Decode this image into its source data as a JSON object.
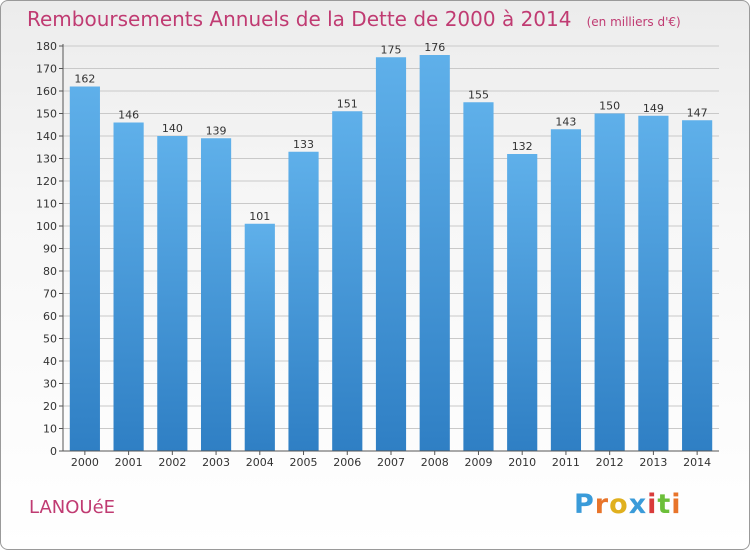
{
  "title": "Remboursements Annuels de la Dette de 2000 à 2014",
  "unit": "(en milliers d'€)",
  "commune": "LANOUéE",
  "logo": {
    "text": "Proxiti",
    "letter_colors": [
      "#3a9bd9",
      "#e8742a",
      "#e0b01e",
      "#3a9bd9",
      "#d93b3b",
      "#6cbf3a",
      "#e8742a"
    ]
  },
  "colors": {
    "bar": "#3d8fd7",
    "bar_light": "#5fb0ea",
    "title": "#c03b72",
    "grid": "#c9c9c9"
  },
  "chart_data": {
    "type": "bar",
    "title": "Remboursements Annuels de la Dette de 2000 à 2014",
    "xlabel": "",
    "ylabel": "",
    "categories": [
      "2000",
      "2001",
      "2002",
      "2003",
      "2004",
      "2005",
      "2006",
      "2007",
      "2008",
      "2009",
      "2010",
      "2011",
      "2012",
      "2013",
      "2014"
    ],
    "values": [
      162,
      146,
      140,
      139,
      101,
      133,
      151,
      175,
      176,
      155,
      132,
      143,
      150,
      149,
      147
    ],
    "ylim": [
      0,
      180
    ],
    "yticks": [
      0,
      10,
      20,
      30,
      40,
      50,
      60,
      70,
      80,
      90,
      100,
      110,
      120,
      130,
      140,
      150,
      160,
      170,
      180
    ],
    "grid": true,
    "legend": "none"
  }
}
